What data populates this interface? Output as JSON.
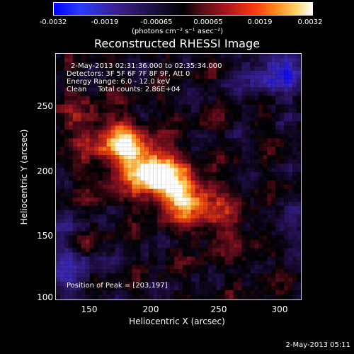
{
  "colorbar": {
    "ticks": [
      "-0.0032",
      "-0.0019",
      "-0.00065",
      "0.00065",
      "0.0019",
      "0.0032"
    ],
    "units": "(photons cm⁻² s⁻¹ asec⁻²)"
  },
  "title": "Reconstructed RHESSI Image",
  "info": {
    "time_range": "2-May-2013 02:31:36.000 to 02:35:34.000",
    "detectors": "Detectors: 3F 5F 6F 7F 8F 9F, Att 0",
    "energy": "Energy Range: 6.0 - 12.0 keV",
    "clean": "Clean     Total counts: 2.86E+04",
    "peak": "Position of Peak = [203,197]"
  },
  "axes": {
    "x_ticks": [
      "150",
      "200",
      "250",
      "300"
    ],
    "y_ticks": [
      "250",
      "200",
      "150",
      "100"
    ],
    "xlabel": "Heliocentric X (arcsec)",
    "ylabel": "Heliocentric Y (arcsec)"
  },
  "timestamp": "2-May-2013 05:11",
  "colors": {
    "background": "#000000",
    "text": "#ffffff",
    "peak": "#ffffff"
  }
}
